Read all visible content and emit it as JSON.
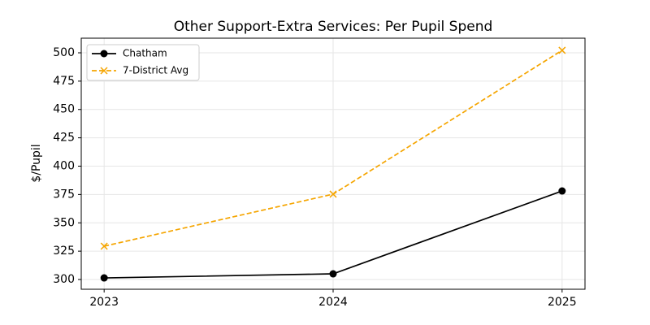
{
  "chart_data": {
    "type": "line",
    "title": "Other Support-Extra Services: Per Pupil Spend",
    "ylabel": "$/Pupil",
    "x": [
      2023,
      2024,
      2025
    ],
    "series": [
      {
        "name": "Chatham",
        "color": "#000000",
        "marker": "circle",
        "linestyle": "solid",
        "values": [
          301.4,
          305,
          378.1
        ]
      },
      {
        "name": "7-District Avg",
        "color": "#f5a500",
        "marker": "x",
        "linestyle": "dashed",
        "values": [
          329.4,
          375.3,
          502.2
        ]
      }
    ],
    "xlim": [
      2022.9,
      2025.1
    ],
    "xticks": [
      2023,
      2024,
      2025
    ],
    "ylim": [
      291.4,
      512.9
    ],
    "yticks": [
      300,
      325,
      350,
      375,
      400,
      425,
      450,
      475,
      500
    ],
    "grid": true,
    "legend": "upper left"
  }
}
